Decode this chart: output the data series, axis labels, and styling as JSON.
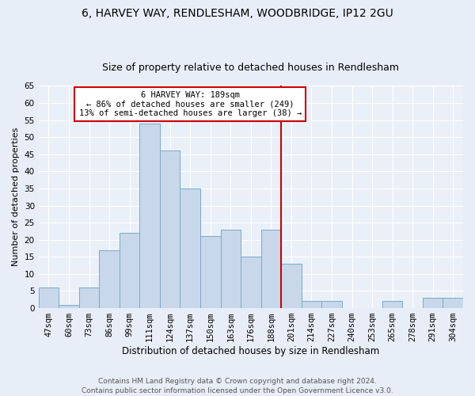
{
  "title": "6, HARVEY WAY, RENDLESHAM, WOODBRIDGE, IP12 2GU",
  "subtitle": "Size of property relative to detached houses in Rendlesham",
  "xlabel": "Distribution of detached houses by size in Rendlesham",
  "ylabel": "Number of detached properties",
  "categories": [
    "47sqm",
    "60sqm",
    "73sqm",
    "86sqm",
    "99sqm",
    "111sqm",
    "124sqm",
    "137sqm",
    "150sqm",
    "163sqm",
    "176sqm",
    "188sqm",
    "201sqm",
    "214sqm",
    "227sqm",
    "240sqm",
    "253sqm",
    "265sqm",
    "278sqm",
    "291sqm",
    "304sqm"
  ],
  "values": [
    6,
    1,
    6,
    17,
    22,
    54,
    46,
    35,
    21,
    23,
    15,
    23,
    13,
    2,
    2,
    0,
    0,
    2,
    0,
    3,
    3
  ],
  "bar_color": "#c8d8ea",
  "bar_edge_color": "#7aaac8",
  "background_color": "#e8eef8",
  "plot_bg_color": "#eaf0f8",
  "grid_color": "#ffffff",
  "vline_x_index": 11.5,
  "vline_color": "#cc0000",
  "annotation_box_text": "6 HARVEY WAY: 189sqm\n← 86% of detached houses are smaller (249)\n13% of semi-detached houses are larger (38) →",
  "annotation_box_facecolor": "#ffffff",
  "annotation_box_edgecolor": "#cc0000",
  "annotation_text_color": "#000000",
  "ylim": [
    0,
    65
  ],
  "yticks": [
    0,
    5,
    10,
    15,
    20,
    25,
    30,
    35,
    40,
    45,
    50,
    55,
    60,
    65
  ],
  "footer_text": "Contains HM Land Registry data © Crown copyright and database right 2024.\nContains public sector information licensed under the Open Government Licence v3.0.",
  "title_fontsize": 10,
  "subtitle_fontsize": 9,
  "xlabel_fontsize": 8.5,
  "ylabel_fontsize": 8,
  "tick_fontsize": 7.5,
  "annotation_fontsize": 7.5,
  "footer_fontsize": 6.5
}
